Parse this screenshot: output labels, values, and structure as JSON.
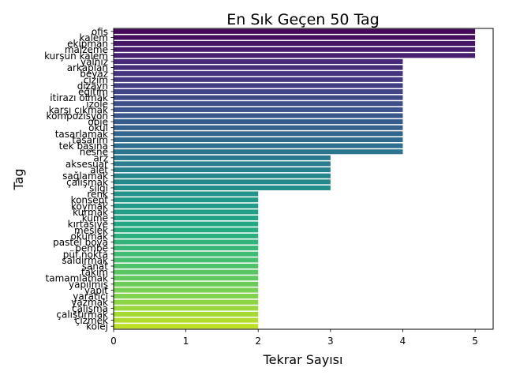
{
  "chart_data": {
    "type": "bar",
    "orientation": "horizontal",
    "title": "En Sık Geçen 50 Tag",
    "xlabel": "Tekrar Sayısı",
    "ylabel": "Tag",
    "xlim": [
      0,
      5.25
    ],
    "xticks": [
      "0",
      "1",
      "2",
      "3",
      "4",
      "5"
    ],
    "grid": false,
    "colormap": "viridis",
    "categories": [
      "ofis",
      "kalem",
      "ekipman",
      "malzeme",
      "kurşun kalem",
      "yalnız",
      "arkaplan",
      "beyaz",
      "çizim",
      "dizayn",
      "eğitim",
      "itirazı olmak",
      "izole",
      "karşı çıkmak",
      "kompozisyon",
      "obje",
      "okul",
      "tasarlamak",
      "tasarım",
      "tek başına",
      "nesne",
      "arz",
      "aksesuar",
      "alet",
      "sağlamak",
      "çalışmak",
      "silgi",
      "renk",
      "konsept",
      "koymak",
      "kurmak",
      "küme",
      "kırtasiye",
      "meslek",
      "okumak",
      "pastel boya",
      "pembe",
      "püf nokta",
      "saldırmak",
      "sanat",
      "takım",
      "tamamlamak",
      "yapılmış",
      "yapıt",
      "yaratıcı",
      "yazmak",
      "çalışma",
      "çalıştırmak",
      "çizmek",
      "kolej"
    ],
    "values": [
      5,
      5,
      5,
      5,
      5,
      4,
      4,
      4,
      4,
      4,
      4,
      4,
      4,
      4,
      4,
      4,
      4,
      4,
      4,
      4,
      4,
      3,
      3,
      3,
      3,
      3,
      3,
      2,
      2,
      2,
      2,
      2,
      2,
      2,
      2,
      2,
      2,
      2,
      2,
      2,
      2,
      2,
      2,
      2,
      2,
      2,
      2,
      2,
      2,
      2
    ]
  }
}
